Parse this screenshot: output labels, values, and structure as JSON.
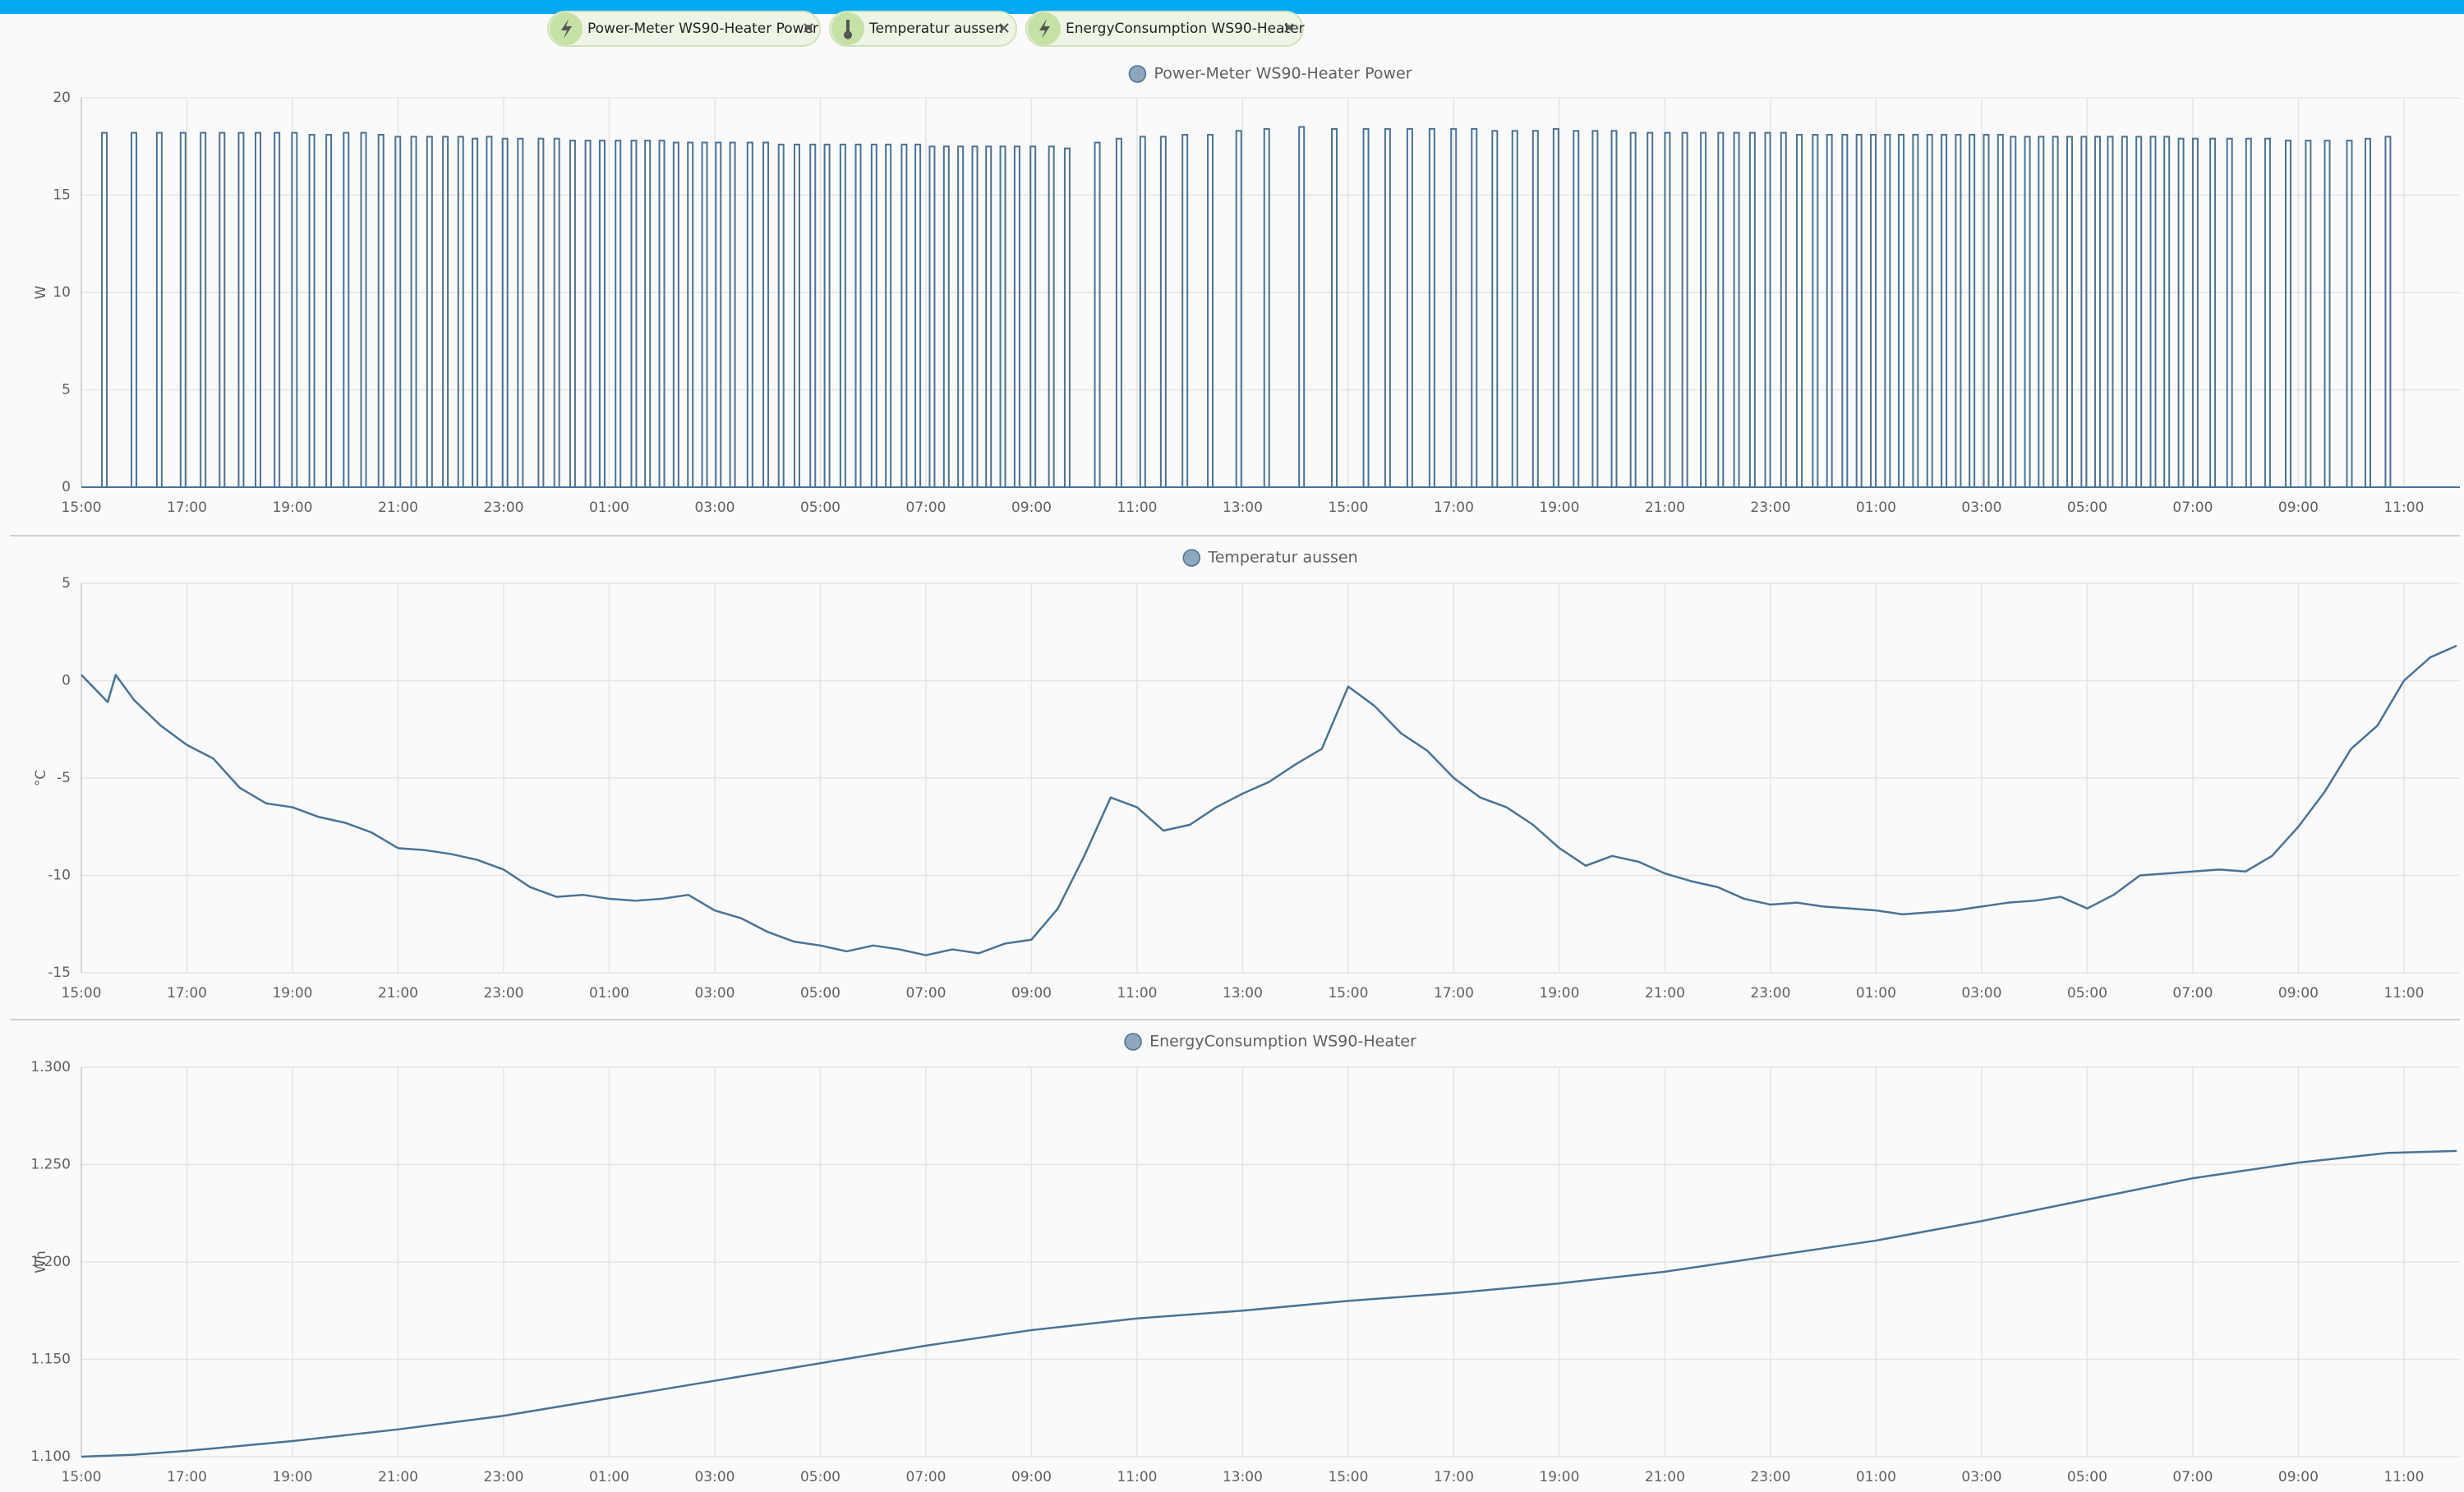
{
  "chips": [
    {
      "label": "Power-Meter WS90-Heater Power"
    },
    {
      "label": "Temperatur aussen"
    },
    {
      "label": "EnergyConsumption WS90-Heater"
    }
  ],
  "chart_data": [
    {
      "type": "bar",
      "y_label": "W",
      "grid": true,
      "xlim": [
        0,
        45.06
      ],
      "ylim": [
        0,
        20
      ],
      "yticks": [
        0,
        5,
        10,
        15,
        20
      ],
      "xticks": [
        {
          "value": 0,
          "label": "15:00"
        },
        {
          "value": 2,
          "label": "17:00"
        },
        {
          "value": 4,
          "label": "19:00"
        },
        {
          "value": 6,
          "label": "21:00"
        },
        {
          "value": 8,
          "label": "23:00"
        },
        {
          "value": 10,
          "label": "01:00"
        },
        {
          "value": 12,
          "label": "03:00"
        },
        {
          "value": 14,
          "label": "05:00"
        },
        {
          "value": 16,
          "label": "07:00"
        },
        {
          "value": 18,
          "label": "09:00"
        },
        {
          "value": 20,
          "label": "11:00"
        },
        {
          "value": 22,
          "label": "13:00"
        },
        {
          "value": 24,
          "label": "15:00"
        },
        {
          "value": 26,
          "label": "17:00"
        },
        {
          "value": 28,
          "label": "19:00"
        },
        {
          "value": 30,
          "label": "21:00"
        },
        {
          "value": 32,
          "label": "23:00"
        },
        {
          "value": 34,
          "label": "01:00"
        },
        {
          "value": 36,
          "label": "03:00"
        },
        {
          "value": 38,
          "label": "05:00"
        },
        {
          "value": 40,
          "label": "07:00"
        },
        {
          "value": 42,
          "label": "09:00"
        },
        {
          "value": 44,
          "label": "11:00"
        }
      ],
      "x": [
        0.39,
        0.95,
        1.43,
        1.88,
        2.26,
        2.62,
        2.98,
        3.3,
        3.66,
        3.99,
        4.32,
        4.64,
        4.97,
        5.3,
        5.63,
        5.95,
        6.25,
        6.55,
        6.85,
        7.14,
        7.41,
        7.68,
        7.98,
        8.27,
        8.66,
        8.96,
        9.26,
        9.55,
        9.82,
        10.12,
        10.42,
        10.68,
        10.95,
        11.22,
        11.49,
        11.76,
        12.02,
        12.29,
        12.62,
        12.92,
        13.21,
        13.51,
        13.81,
        14.08,
        14.38,
        14.67,
        14.97,
        15.24,
        15.54,
        15.8,
        16.07,
        16.34,
        16.61,
        16.88,
        17.14,
        17.41,
        17.68,
        17.98,
        18.33,
        18.63,
        19.2,
        19.61,
        20.06,
        20.45,
        20.86,
        21.34,
        21.88,
        22.41,
        23.07,
        23.69,
        24.29,
        24.7,
        25.12,
        25.54,
        25.95,
        26.34,
        26.73,
        27.11,
        27.5,
        27.89,
        28.27,
        28.63,
        28.99,
        29.35,
        29.67,
        30.0,
        30.33,
        30.68,
        31.01,
        31.31,
        31.61,
        31.9,
        32.2,
        32.5,
        32.8,
        33.07,
        33.36,
        33.63,
        33.9,
        34.17,
        34.43,
        34.7,
        34.97,
        35.24,
        35.51,
        35.77,
        36.04,
        36.31,
        36.55,
        36.82,
        37.08,
        37.35,
        37.62,
        37.89,
        38.15,
        38.39,
        38.66,
        38.93,
        39.2,
        39.46,
        39.73,
        40.0,
        40.33,
        40.65,
        41.01,
        41.37,
        41.76,
        42.14,
        42.5,
        42.92,
        43.27,
        43.65
      ],
      "series": [
        {
          "name": "Power-Meter WS90-Heater Power",
          "color": "#4a7396",
          "values": [
            18.2,
            18.2,
            18.2,
            18.2,
            18.2,
            18.2,
            18.2,
            18.2,
            18.2,
            18.2,
            18.1,
            18.1,
            18.2,
            18.2,
            18.1,
            18.0,
            18.0,
            18.0,
            18.0,
            18.0,
            17.9,
            18.0,
            17.9,
            17.9,
            17.9,
            17.9,
            17.8,
            17.8,
            17.8,
            17.8,
            17.8,
            17.8,
            17.8,
            17.7,
            17.7,
            17.7,
            17.7,
            17.7,
            17.7,
            17.7,
            17.6,
            17.6,
            17.6,
            17.6,
            17.6,
            17.6,
            17.6,
            17.6,
            17.6,
            17.6,
            17.5,
            17.5,
            17.5,
            17.5,
            17.5,
            17.5,
            17.5,
            17.5,
            17.5,
            17.4,
            17.7,
            17.9,
            18.0,
            18.0,
            18.1,
            18.1,
            18.3,
            18.4,
            18.5,
            18.4,
            18.4,
            18.4,
            18.4,
            18.4,
            18.4,
            18.4,
            18.3,
            18.3,
            18.3,
            18.4,
            18.3,
            18.3,
            18.3,
            18.2,
            18.2,
            18.2,
            18.2,
            18.2,
            18.2,
            18.2,
            18.2,
            18.2,
            18.2,
            18.1,
            18.1,
            18.1,
            18.1,
            18.1,
            18.1,
            18.1,
            18.1,
            18.1,
            18.1,
            18.1,
            18.1,
            18.1,
            18.1,
            18.1,
            18.0,
            18.0,
            18.0,
            18.0,
            18.0,
            18.0,
            18.0,
            18.0,
            18.0,
            18.0,
            18.0,
            18.0,
            17.9,
            17.9,
            17.9,
            17.9,
            17.9,
            17.9,
            17.8,
            17.8,
            17.8,
            17.8,
            17.9,
            18.0
          ]
        }
      ]
    },
    {
      "type": "line",
      "y_label": "°C",
      "grid": true,
      "xlim": [
        0,
        45.06
      ],
      "ylim": [
        -15,
        5
      ],
      "yticks": [
        -15,
        -10,
        -5,
        0,
        5
      ],
      "xticks": [
        {
          "value": 0,
          "label": "15:00"
        },
        {
          "value": 2,
          "label": "17:00"
        },
        {
          "value": 4,
          "label": "19:00"
        },
        {
          "value": 6,
          "label": "21:00"
        },
        {
          "value": 8,
          "label": "23:00"
        },
        {
          "value": 10,
          "label": "01:00"
        },
        {
          "value": 12,
          "label": "03:00"
        },
        {
          "value": 14,
          "label": "05:00"
        },
        {
          "value": 16,
          "label": "07:00"
        },
        {
          "value": 18,
          "label": "09:00"
        },
        {
          "value": 20,
          "label": "11:00"
        },
        {
          "value": 22,
          "label": "13:00"
        },
        {
          "value": 24,
          "label": "15:00"
        },
        {
          "value": 26,
          "label": "17:00"
        },
        {
          "value": 28,
          "label": "19:00"
        },
        {
          "value": 30,
          "label": "21:00"
        },
        {
          "value": 32,
          "label": "23:00"
        },
        {
          "value": 34,
          "label": "01:00"
        },
        {
          "value": 36,
          "label": "03:00"
        },
        {
          "value": 38,
          "label": "05:00"
        },
        {
          "value": 40,
          "label": "07:00"
        },
        {
          "value": 42,
          "label": "09:00"
        },
        {
          "value": 44,
          "label": "11:00"
        }
      ],
      "x": [
        0,
        0.5,
        0.65,
        1,
        1.5,
        2,
        2.5,
        3,
        3.5,
        4,
        4.5,
        5,
        5.5,
        6,
        6.5,
        7,
        7.5,
        8,
        8.5,
        9,
        9.5,
        10,
        10.5,
        11,
        11.5,
        12,
        12.5,
        13,
        13.5,
        14,
        14.5,
        15,
        15.5,
        16,
        16.5,
        17,
        17.5,
        18,
        18.5,
        19,
        19.5,
        20,
        20.5,
        21,
        21.5,
        22,
        22.5,
        23,
        23.5,
        24,
        24.5,
        25,
        25.5,
        26,
        26.5,
        27,
        27.5,
        28,
        28.5,
        29,
        29.5,
        30,
        30.5,
        31,
        31.5,
        32,
        32.5,
        33,
        33.5,
        34,
        34.5,
        35,
        35.5,
        36,
        36.5,
        37,
        37.5,
        38,
        38.5,
        39,
        39.5,
        40,
        40.5,
        41,
        41.5,
        42,
        42.5,
        43,
        43.5,
        44,
        44.5,
        45
      ],
      "series": [
        {
          "name": "Temperatur aussen",
          "color": "#4a7396",
          "values": [
            0.3,
            -1.1,
            0.3,
            -1.0,
            -2.3,
            -3.3,
            -4.0,
            -5.5,
            -6.3,
            -6.5,
            -7.0,
            -7.3,
            -7.8,
            -8.6,
            -8.7,
            -8.9,
            -9.2,
            -9.7,
            -10.6,
            -11.1,
            -11.0,
            -11.2,
            -11.3,
            -11.2,
            -11.0,
            -11.8,
            -12.2,
            -12.9,
            -13.4,
            -13.6,
            -13.9,
            -13.6,
            -13.8,
            -14.1,
            -13.8,
            -14.0,
            -13.5,
            -13.3,
            -11.7,
            -9.0,
            -6.0,
            -6.5,
            -7.7,
            -7.4,
            -6.5,
            -5.8,
            -5.2,
            -4.3,
            -3.5,
            -0.3,
            -1.3,
            -2.7,
            -3.6,
            -5.0,
            -6.0,
            -6.5,
            -7.4,
            -8.6,
            -9.5,
            -9.0,
            -9.3,
            -9.9,
            -10.3,
            -10.6,
            -11.2,
            -11.5,
            -11.4,
            -11.6,
            -11.7,
            -11.8,
            -12.0,
            -11.9,
            -11.8,
            -11.6,
            -11.4,
            -11.3,
            -11.1,
            -11.7,
            -11.0,
            -10.0,
            -9.9,
            -9.8,
            -9.7,
            -9.8,
            -9.0,
            -7.5,
            -5.7,
            -3.5,
            -2.3,
            0.0,
            1.2,
            1.8
          ]
        }
      ]
    },
    {
      "type": "line",
      "y_label": "Wh",
      "grid": true,
      "xlim": [
        0,
        45.06
      ],
      "ylim": [
        1.1,
        1.3
      ],
      "yticks": [
        {
          "value": 1.1,
          "label": "1.100"
        },
        {
          "value": 1.15,
          "label": "1.150"
        },
        {
          "value": 1.2,
          "label": "1.200"
        },
        {
          "value": 1.25,
          "label": "1.250"
        },
        {
          "value": 1.3,
          "label": "1.300"
        }
      ],
      "xticks": [
        {
          "value": 0,
          "label": "15:00"
        },
        {
          "value": 2,
          "label": "17:00"
        },
        {
          "value": 4,
          "label": "19:00"
        },
        {
          "value": 6,
          "label": "21:00"
        },
        {
          "value": 8,
          "label": "23:00"
        },
        {
          "value": 10,
          "label": "01:00"
        },
        {
          "value": 12,
          "label": "03:00"
        },
        {
          "value": 14,
          "label": "05:00"
        },
        {
          "value": 16,
          "label": "07:00"
        },
        {
          "value": 18,
          "label": "09:00"
        },
        {
          "value": 20,
          "label": "11:00"
        },
        {
          "value": 22,
          "label": "13:00"
        },
        {
          "value": 24,
          "label": "15:00"
        },
        {
          "value": 26,
          "label": "17:00"
        },
        {
          "value": 28,
          "label": "19:00"
        },
        {
          "value": 30,
          "label": "21:00"
        },
        {
          "value": 32,
          "label": "23:00"
        },
        {
          "value": 34,
          "label": "01:00"
        },
        {
          "value": 36,
          "label": "03:00"
        },
        {
          "value": 38,
          "label": "05:00"
        },
        {
          "value": 40,
          "label": "07:00"
        },
        {
          "value": 42,
          "label": "09:00"
        },
        {
          "value": 44,
          "label": "11:00"
        }
      ],
      "x": [
        0,
        1,
        2,
        4,
        6,
        8,
        10,
        12,
        14,
        16,
        18,
        20,
        22,
        24,
        26,
        28,
        30,
        32,
        34,
        36,
        38,
        40,
        42,
        43.7,
        45
      ],
      "series": [
        {
          "name": "EnergyConsumption WS90-Heater",
          "color": "#4a7396",
          "values": [
            1.1,
            1.101,
            1.103,
            1.108,
            1.114,
            1.121,
            1.13,
            1.139,
            1.148,
            1.157,
            1.165,
            1.171,
            1.175,
            1.18,
            1.184,
            1.189,
            1.195,
            1.203,
            1.211,
            1.221,
            1.232,
            1.243,
            1.251,
            1.256,
            1.257
          ]
        }
      ]
    }
  ]
}
